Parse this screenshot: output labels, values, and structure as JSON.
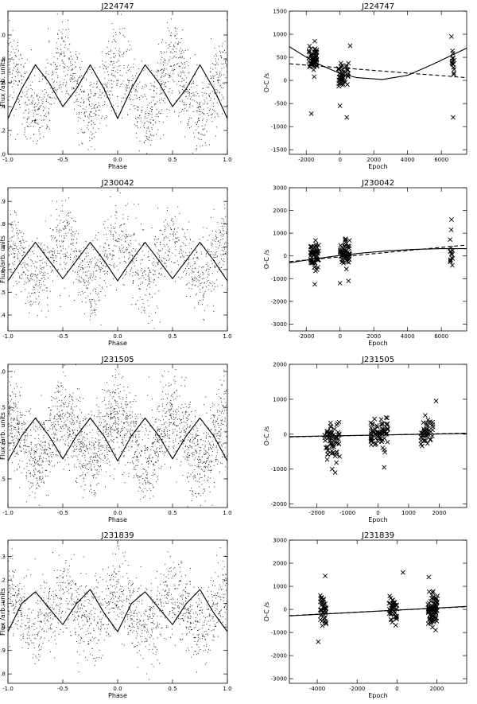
{
  "chart_data": [
    {
      "id": "lc-J224747",
      "type": "scatter",
      "title": "J224747",
      "xlabel": "Phase",
      "ylabel": "Flux /arb. units",
      "xlim": [
        -1.0,
        1.0
      ],
      "ylim": [
        2.0,
        3.2
      ],
      "xticks": [
        -1.0,
        -0.5,
        0.0,
        0.5,
        1.0
      ],
      "xtick_labels": [
        "-1.0",
        "-0.5",
        "0.0",
        "0.5",
        "1.0"
      ],
      "yticks": [
        2.0,
        2.2,
        2.4,
        2.6,
        2.8,
        3.0
      ],
      "ytick_labels": [
        "2.0",
        "2.2",
        "2.4",
        "2.6",
        "2.8",
        "3.0"
      ],
      "series": [
        {
          "kind": "points",
          "marker": "dot",
          "generator": {
            "mean": 2.55,
            "amp": 0.22,
            "p1": 0.25,
            "p2": 0.02,
            "scatter": 0.17,
            "count": 1500
          }
        },
        {
          "kind": "line",
          "x": [
            -1.0,
            -0.875,
            -0.75,
            -0.625,
            -0.5,
            -0.375,
            -0.25,
            -0.125,
            0.0,
            0.125,
            0.25,
            0.375,
            0.5,
            0.625,
            0.75,
            0.875,
            1.0
          ],
          "y": [
            2.3,
            2.55,
            2.75,
            2.6,
            2.4,
            2.55,
            2.75,
            2.55,
            2.3,
            2.55,
            2.75,
            2.6,
            2.4,
            2.55,
            2.75,
            2.55,
            2.3
          ]
        }
      ]
    },
    {
      "id": "oc-J224747",
      "type": "scatter",
      "title": "J224747",
      "xlabel": "Epoch",
      "ylabel": "O-C /s",
      "xlim": [
        -3000,
        7500
      ],
      "ylim": [
        -1600,
        1500
      ],
      "xticks": [
        -2000,
        0,
        2000,
        4000,
        6000
      ],
      "xtick_labels": [
        "-2000",
        "0",
        "2000",
        "4000",
        "6000"
      ],
      "yticks": [
        -1500,
        -1000,
        -500,
        0,
        500,
        1000,
        1500
      ],
      "ytick_labels": [
        "-1500",
        "-1000",
        "-500",
        "0",
        "500",
        "1000",
        "1500"
      ],
      "series": [
        {
          "kind": "points",
          "marker": "x",
          "clusters": [
            {
              "x": -1600,
              "xw": 250,
              "y": 450,
              "yw": 230,
              "n": 55
            },
            {
              "x": 200,
              "xw": 300,
              "y": 100,
              "yw": 250,
              "n": 50
            },
            {
              "x": 6700,
              "xw": 80,
              "y": 450,
              "yw": 250,
              "n": 14
            }
          ],
          "outliers": [
            [
              -1700,
              -720
            ],
            [
              0,
              -550
            ],
            [
              400,
              -800
            ],
            [
              6700,
              -800
            ],
            [
              -1500,
              850
            ],
            [
              600,
              750
            ],
            [
              6600,
              950
            ]
          ]
        },
        {
          "kind": "line",
          "style": "solid",
          "x": [
            -3000,
            -1500,
            0,
            1000,
            2500,
            4000,
            5500,
            7500
          ],
          "y": [
            730,
            390,
            150,
            60,
            20,
            110,
            350,
            700
          ]
        },
        {
          "kind": "line",
          "style": "dashed",
          "x": [
            -3000,
            7500
          ],
          "y": [
            360,
            60
          ]
        }
      ]
    },
    {
      "id": "lc-J230042",
      "type": "scatter",
      "title": "J230042",
      "xlabel": "Phase",
      "ylabel": "Flux /arb. units",
      "xlim": [
        -1.0,
        1.0
      ],
      "ylim": [
        0.33,
        0.96
      ],
      "xticks": [
        -1.0,
        -0.5,
        0.0,
        0.5,
        1.0
      ],
      "xtick_labels": [
        "-1.0",
        "-0.5",
        "0.0",
        "0.5",
        "1.0"
      ],
      "yticks": [
        0.4,
        0.5,
        0.6,
        0.7,
        0.8,
        0.9
      ],
      "ytick_labels": [
        "0.4",
        "0.5",
        "0.6",
        "0.7",
        "0.8",
        "0.9"
      ],
      "series": [
        {
          "kind": "points",
          "marker": "dot",
          "generator": {
            "mean": 0.645,
            "amp": 0.085,
            "p1": 0.57,
            "p2": 0.01,
            "scatter": 0.085,
            "count": 1400
          }
        },
        {
          "kind": "line",
          "x": [
            -1.0,
            -0.875,
            -0.75,
            -0.625,
            -0.5,
            -0.375,
            -0.25,
            -0.125,
            0.0,
            0.125,
            0.25,
            0.375,
            0.5,
            0.625,
            0.75,
            0.875,
            1.0
          ],
          "y": [
            0.55,
            0.64,
            0.72,
            0.64,
            0.56,
            0.64,
            0.72,
            0.64,
            0.55,
            0.64,
            0.72,
            0.64,
            0.56,
            0.64,
            0.72,
            0.64,
            0.55
          ]
        }
      ]
    },
    {
      "id": "oc-J230042",
      "type": "scatter",
      "title": "J230042",
      "xlabel": "Epoch",
      "ylabel": "O-C /s",
      "xlim": [
        -3000,
        7500
      ],
      "ylim": [
        -3300,
        3000
      ],
      "xticks": [
        -2000,
        0,
        2000,
        4000,
        6000
      ],
      "xtick_labels": [
        "-2000",
        "0",
        "2000",
        "4000",
        "6000"
      ],
      "yticks": [
        -3000,
        -2000,
        -1000,
        0,
        1000,
        2000,
        3000
      ],
      "ytick_labels": [
        "-3000",
        "-2000",
        "-1000",
        "0",
        "1000",
        "2000",
        "3000"
      ],
      "series": [
        {
          "kind": "points",
          "marker": "x",
          "clusters": [
            {
              "x": -1500,
              "xw": 250,
              "y": 0,
              "yw": 500,
              "n": 60
            },
            {
              "x": 300,
              "xw": 300,
              "y": 100,
              "yw": 500,
              "n": 60
            },
            {
              "x": 6600,
              "xw": 80,
              "y": 300,
              "yw": 700,
              "n": 14
            }
          ],
          "outliers": [
            [
              -1500,
              -1250
            ],
            [
              0,
              -1200
            ],
            [
              500,
              -1100
            ],
            [
              6600,
              1600
            ]
          ]
        },
        {
          "kind": "line",
          "style": "solid",
          "x": [
            -3000,
            -1500,
            0,
            1500,
            3000,
            4500,
            6000,
            7500
          ],
          "y": [
            -300,
            -130,
            20,
            140,
            230,
            290,
            320,
            320
          ]
        },
        {
          "kind": "line",
          "style": "dashed",
          "x": [
            -3000,
            7500
          ],
          "y": [
            -250,
            480
          ]
        }
      ]
    },
    {
      "id": "lc-J231505",
      "type": "scatter",
      "title": "J231505",
      "xlabel": "Phase",
      "ylabel": "Flux /arb. units",
      "xlim": [
        -1.0,
        1.0
      ],
      "ylim": [
        3.1,
        5.1
      ],
      "xticks": [
        -1.0,
        -0.5,
        0.0,
        0.5,
        1.0
      ],
      "xtick_labels": [
        "-1.0",
        "-0.5",
        "0.0",
        "0.5",
        "1.0"
      ],
      "yticks": [
        3.5,
        4.0,
        4.5,
        5.0
      ],
      "ytick_labels": [
        "3.5",
        "4.0",
        "4.5",
        "5.0"
      ],
      "series": [
        {
          "kind": "points",
          "marker": "dot",
          "generator": {
            "mean": 4.07,
            "amp": 0.3,
            "p1": 0.3,
            "p2": 0.0,
            "scatter": 0.3,
            "count": 2200
          }
        },
        {
          "kind": "line",
          "x": [
            -1.0,
            -0.875,
            -0.75,
            -0.625,
            -0.5,
            -0.375,
            -0.25,
            -0.125,
            0.0,
            0.125,
            0.25,
            0.375,
            0.5,
            0.625,
            0.75,
            0.875,
            1.0
          ],
          "y": [
            3.75,
            4.1,
            4.35,
            4.1,
            3.78,
            4.1,
            4.35,
            4.1,
            3.75,
            4.1,
            4.35,
            4.1,
            3.78,
            4.1,
            4.35,
            4.1,
            3.75
          ]
        }
      ]
    },
    {
      "id": "oc-J231505",
      "type": "scatter",
      "title": "J231505",
      "xlabel": "Epoch",
      "ylabel": "O-C /s",
      "xlim": [
        -2900,
        2900
      ],
      "ylim": [
        -2100,
        2000
      ],
      "xticks": [
        -2000,
        -1000,
        0,
        1000,
        2000
      ],
      "xtick_labels": [
        "-2000",
        "-1000",
        "0",
        "1000",
        "2000"
      ],
      "yticks": [
        -2000,
        -1000,
        0,
        1000,
        2000
      ],
      "ytick_labels": [
        "-2000",
        "-1000",
        "0",
        "1000",
        "2000"
      ],
      "series": [
        {
          "kind": "points",
          "marker": "x",
          "clusters": [
            {
              "x": -1500,
              "xw": 250,
              "y": -200,
              "yw": 450,
              "n": 70
            },
            {
              "x": 50,
              "xw": 300,
              "y": 0,
              "yw": 400,
              "n": 70
            },
            {
              "x": 1600,
              "xw": 200,
              "y": 0,
              "yw": 350,
              "n": 45
            }
          ],
          "outliers": [
            [
              -1400,
              -1100
            ],
            [
              -1500,
              -1000
            ],
            [
              1900,
              950
            ],
            [
              200,
              -950
            ]
          ]
        },
        {
          "kind": "line",
          "style": "solid",
          "x": [
            -2900,
            2900
          ],
          "y": [
            -70,
            20
          ]
        },
        {
          "kind": "line",
          "style": "dashed",
          "x": [
            -2900,
            2900
          ],
          "y": [
            -80,
            30
          ]
        }
      ]
    },
    {
      "id": "lc-J231839",
      "type": "scatter",
      "title": "J231839",
      "xlabel": "Phase",
      "ylabel": "Flux /arb. units",
      "xlim": [
        -1.0,
        1.0
      ],
      "ylim": [
        0.76,
        1.37
      ],
      "xticks": [
        -1.0,
        -0.5,
        0.0,
        0.5,
        1.0
      ],
      "xtick_labels": [
        "-1.0",
        "-0.5",
        "0.0",
        "0.5",
        "1.0"
      ],
      "yticks": [
        0.8,
        0.9,
        1.0,
        1.1,
        1.2,
        1.3
      ],
      "ytick_labels": [
        "0.8",
        "0.9",
        "1.0",
        "1.1",
        "1.2",
        "1.3"
      ],
      "series": [
        {
          "kind": "points",
          "marker": "dot",
          "generator": {
            "mean": 1.075,
            "amp": 0.065,
            "p1": 0.8,
            "p2": 0.015,
            "scatter": 0.085,
            "count": 1500
          }
        },
        {
          "kind": "line",
          "x": [
            -1.0,
            -0.875,
            -0.75,
            -0.625,
            -0.5,
            -0.375,
            -0.25,
            -0.125,
            0.0,
            0.125,
            0.25,
            0.375,
            0.5,
            0.625,
            0.75,
            0.875,
            1.0
          ],
          "y": [
            0.98,
            1.1,
            1.15,
            1.08,
            1.01,
            1.1,
            1.16,
            1.06,
            0.98,
            1.1,
            1.15,
            1.08,
            1.01,
            1.1,
            1.16,
            1.06,
            0.98
          ]
        }
      ]
    },
    {
      "id": "oc-J231839",
      "type": "scatter",
      "title": "J231839",
      "xlabel": "Epoch",
      "ylabel": "O-C /s",
      "xlim": [
        -5400,
        3500
      ],
      "ylim": [
        -3200,
        3000
      ],
      "xticks": [
        -4000,
        -2000,
        0,
        2000
      ],
      "xtick_labels": [
        "-4000",
        "-2000",
        "0",
        "2000"
      ],
      "yticks": [
        -3000,
        -2000,
        -1000,
        0,
        1000,
        2000,
        3000
      ],
      "ytick_labels": [
        "-3000",
        "-2000",
        "-1000",
        "0",
        "1000",
        "2000",
        "3000"
      ],
      "series": [
        {
          "kind": "points",
          "marker": "x",
          "clusters": [
            {
              "x": -3700,
              "xw": 150,
              "y": 0,
              "yw": 650,
              "n": 40
            },
            {
              "x": -200,
              "xw": 200,
              "y": 0,
              "yw": 550,
              "n": 45
            },
            {
              "x": 1800,
              "xw": 250,
              "y": 0,
              "yw": 600,
              "n": 80
            }
          ],
          "outliers": [
            [
              -3950,
              -1400
            ],
            [
              -3600,
              1450
            ],
            [
              300,
              1600
            ],
            [
              1600,
              1400
            ]
          ]
        },
        {
          "kind": "line",
          "style": "solid",
          "x": [
            -5400,
            3500
          ],
          "y": [
            -280,
            130
          ]
        },
        {
          "kind": "line",
          "style": "dashed",
          "x": [
            -5400,
            3500
          ],
          "y": [
            -270,
            120
          ]
        }
      ]
    }
  ]
}
